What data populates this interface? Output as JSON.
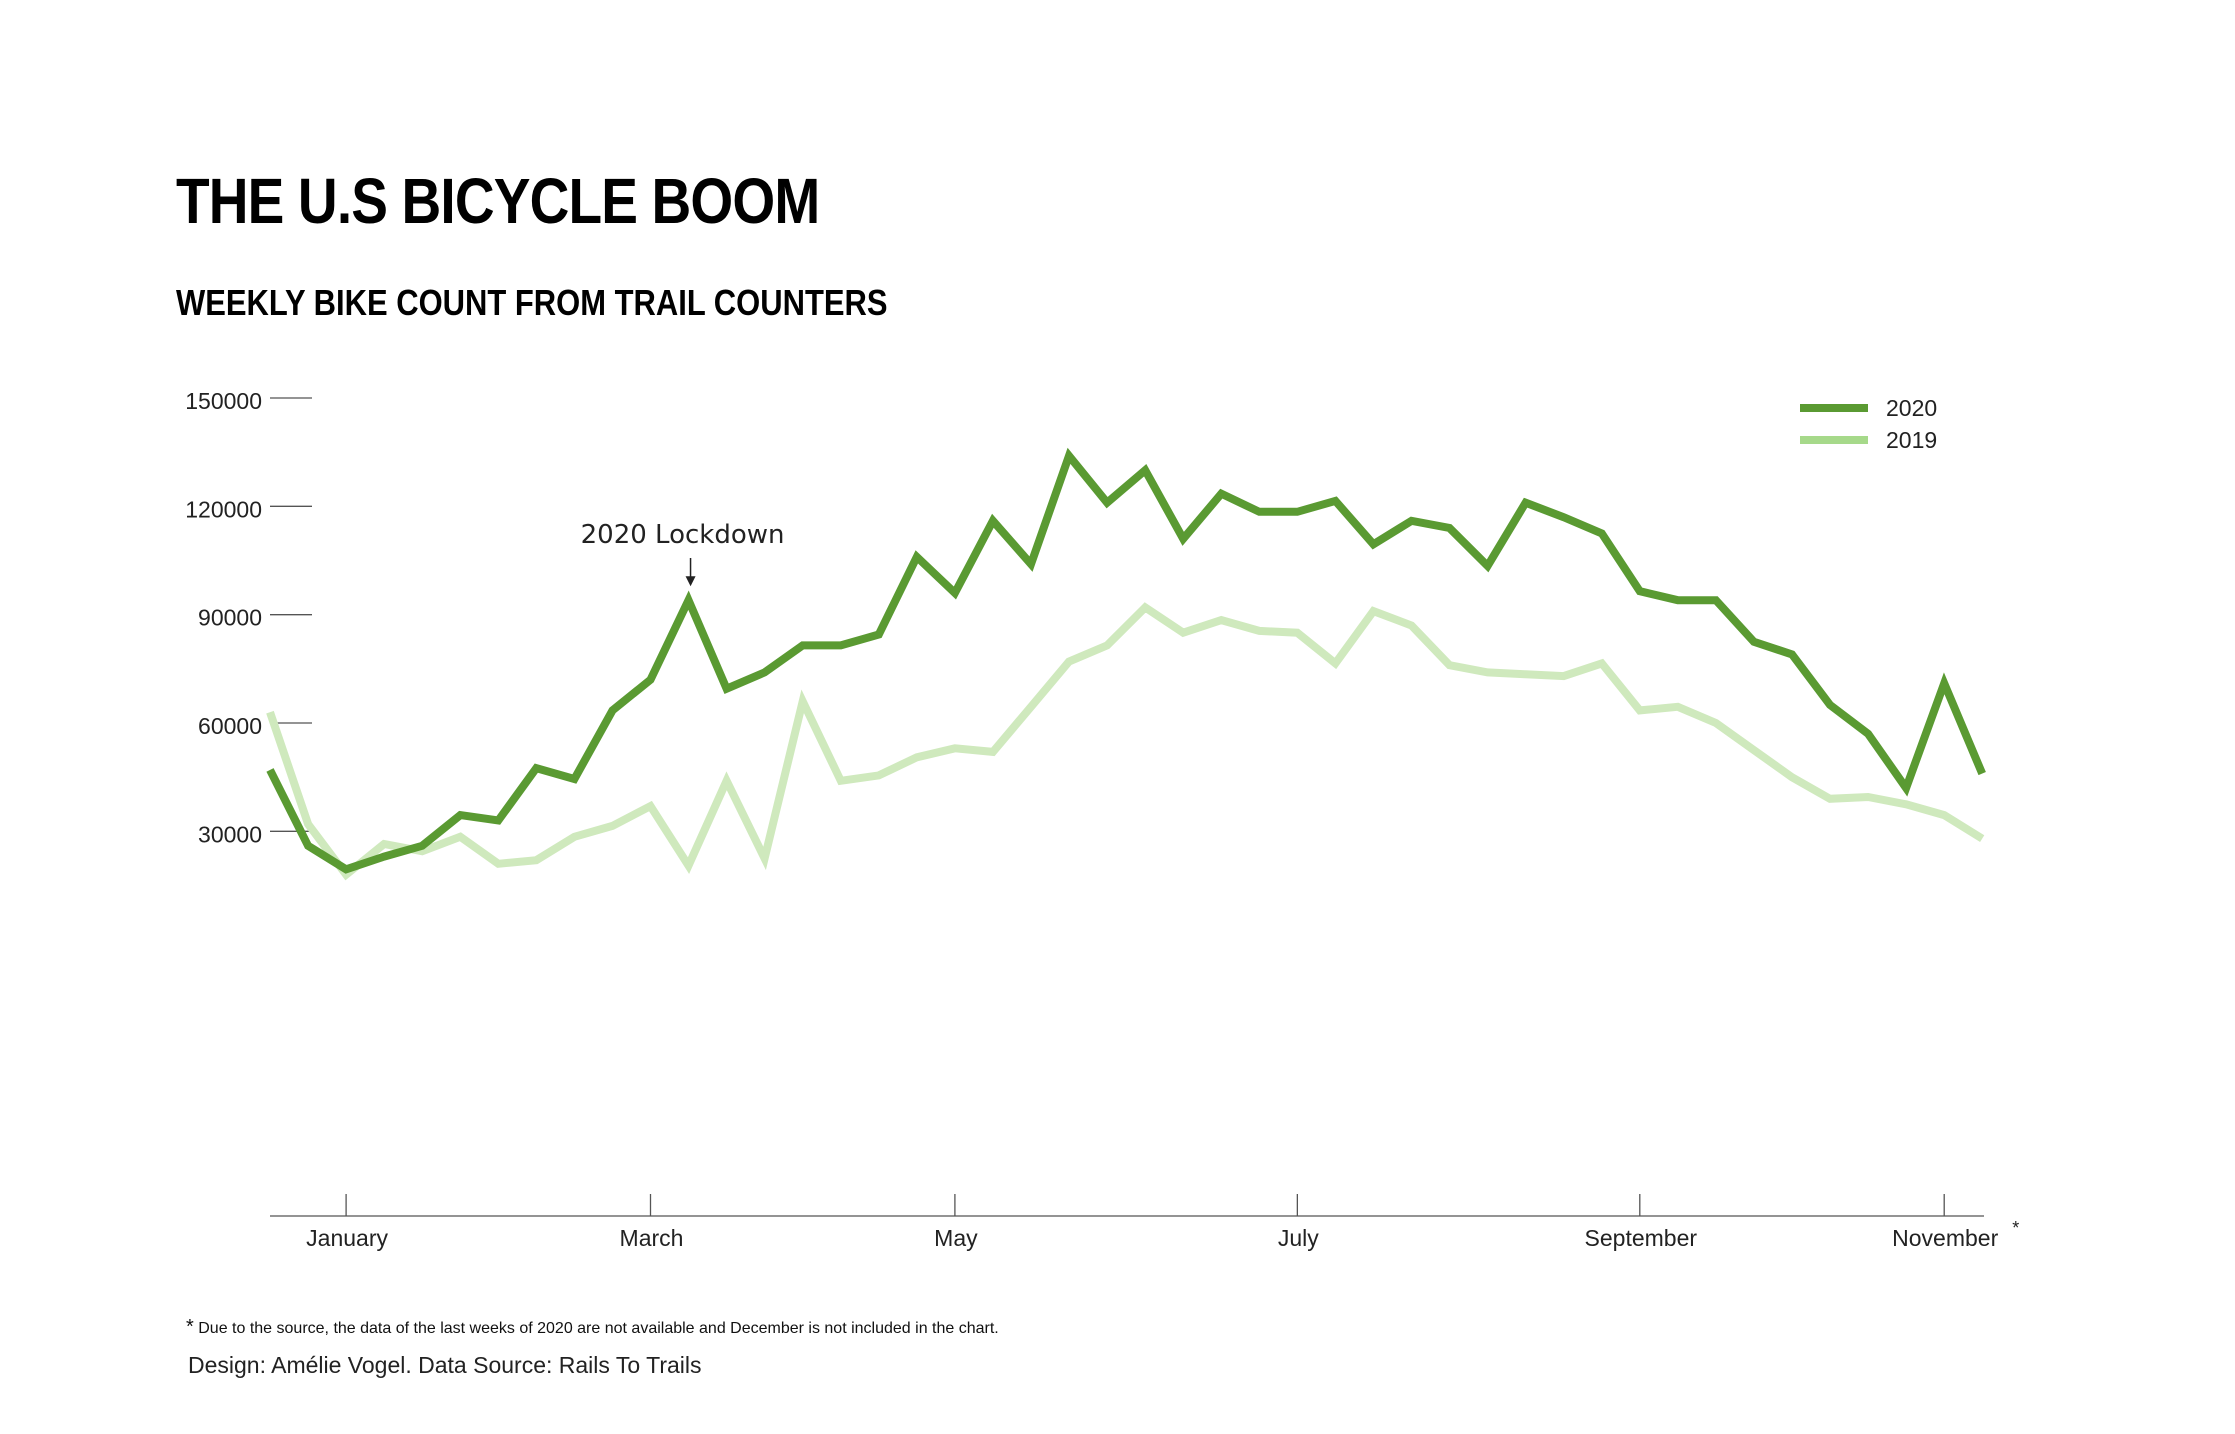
{
  "header": {
    "title": "THE U.S BICYCLE BOOM",
    "subtitle": "WEEKLY BIKE COUNT FROM TRAIL COUNTERS"
  },
  "chart_data": {
    "type": "line",
    "title": "THE U.S BICYCLE BOOM",
    "subtitle": "WEEKLY BIKE COUNT FROM TRAIL COUNTERS",
    "xlabel": "",
    "ylabel": "",
    "ylim": [
      0,
      150000
    ],
    "yticks": [
      30000,
      60000,
      90000,
      120000,
      150000
    ],
    "x_tick_labels": [
      "January",
      "March",
      "May",
      "July",
      "September",
      "November"
    ],
    "x_tick_weeks": [
      3,
      11,
      19,
      28,
      37,
      45
    ],
    "x_tick_suffix": {
      "November": "*"
    },
    "grid": false,
    "legend_position": "top-right",
    "x": [
      1,
      2,
      3,
      4,
      5,
      6,
      7,
      8,
      9,
      10,
      11,
      12,
      13,
      14,
      15,
      16,
      17,
      18,
      19,
      20,
      21,
      22,
      23,
      24,
      25,
      26,
      27,
      28,
      29,
      30,
      31,
      32,
      33,
      34,
      35,
      36,
      37,
      38,
      39,
      40,
      41,
      42,
      43,
      44,
      45,
      46
    ],
    "series": [
      {
        "name": "2020",
        "color": "#5a9a32",
        "values": [
          47000,
          26000,
          19500,
          23000,
          26000,
          34500,
          33000,
          47500,
          44500,
          63500,
          72000,
          94000,
          69500,
          74000,
          81500,
          81500,
          84500,
          106000,
          96000,
          116000,
          104000,
          134000,
          121000,
          130000,
          111000,
          123500,
          118500,
          118500,
          121500,
          109500,
          116000,
          114000,
          103500,
          121000,
          117000,
          112500,
          96500,
          94000,
          94000,
          82500,
          79000,
          65000,
          57000,
          42000,
          71000,
          46000
        ]
      },
      {
        "name": "2019",
        "color": "#cfe9bd",
        "values": [
          63000,
          32000,
          18000,
          26500,
          24500,
          28500,
          21000,
          22000,
          28500,
          31500,
          37000,
          20500,
          44000,
          22500,
          66000,
          44000,
          45500,
          50500,
          53000,
          52000,
          64500,
          77000,
          81500,
          92000,
          85000,
          88500,
          85500,
          85000,
          76500,
          91000,
          87000,
          76000,
          74000,
          73500,
          73000,
          76500,
          63500,
          64500,
          60000,
          52500,
          45000,
          39000,
          39500,
          37500,
          34500,
          28000
        ]
      }
    ],
    "annotations": [
      {
        "text": "2020 Lockdown",
        "x": 12,
        "series": "2020"
      }
    ]
  },
  "footer": {
    "footnote_mark": "*",
    "footnote": "Due to the source, the data of the last weeks of 2020 are not available and December is not included in the chart.",
    "credit": "Design: Amélie Vogel. Data Source: Rails To Trails"
  }
}
